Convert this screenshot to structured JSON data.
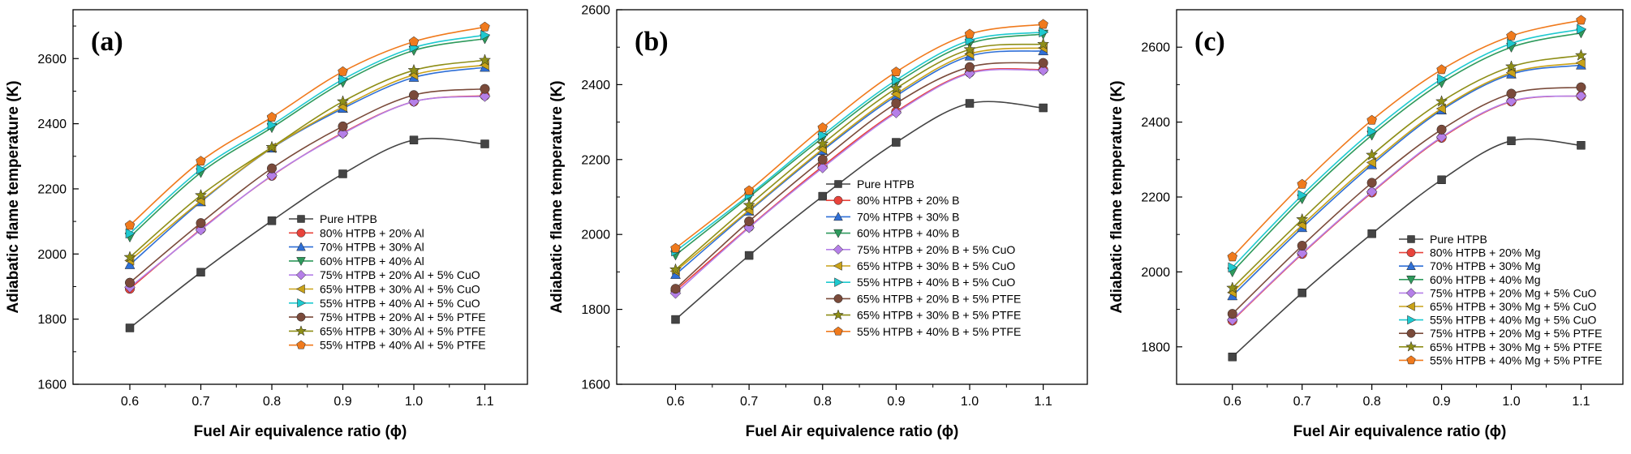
{
  "colors": {
    "Pure HTPB": "#444444",
    "80% HTPB": "#e8433b",
    "70% HTPB": "#2f6fd6",
    "60% HTPB": "#2e9a5c",
    "75% HTPB + 20% + 5% CuO": "#b57fe8",
    "65% HTPB + 30% + 5% CuO": "#c9a218",
    "55% HTPB + 40% + 5% CuO": "#1ec9cf",
    "75% HTPB + 20% + 5% PTFE": "#7a4a3a",
    "65% HTPB + 30% + 5% PTFE": "#8e8e17",
    "55% HTPB + 40% + 5% PTFE": "#f07a1d"
  },
  "chart_data": [
    {
      "type": "line",
      "panel_label": "(a)",
      "xlabel": "Fuel Air equivalence ratio (ɸ)",
      "ylabel": "Adiabatic flame temperature (K)",
      "x": [
        0.6,
        0.7,
        0.8,
        0.9,
        1.0,
        1.1
      ],
      "x_ticks": [
        "0.6",
        "0.7",
        "0.8",
        "0.9",
        "1.0",
        "1.1"
      ],
      "ylim": [
        1600,
        2750
      ],
      "y_ticks": [
        "1600",
        "1800",
        "2000",
        "2200",
        "2400",
        "2600"
      ],
      "legend_position": "bottom-right",
      "series": [
        {
          "name": "Pure HTPB",
          "marker": "square",
          "values": [
            1773,
            1944,
            2102,
            2246,
            2350,
            2338
          ]
        },
        {
          "name": "80% HTPB + 20% Al",
          "marker": "circle",
          "values": [
            1893,
            2076,
            2240,
            2372,
            2468,
            2486
          ]
        },
        {
          "name": "70% HTPB + 30% Al",
          "marker": "triangle-up",
          "values": [
            1967,
            2160,
            2325,
            2447,
            2542,
            2573
          ]
        },
        {
          "name": "60% HTPB + 40% Al",
          "marker": "triangle-down",
          "values": [
            2052,
            2250,
            2388,
            2527,
            2625,
            2661
          ]
        },
        {
          "name": "75% HTPB + 20% Al + 5% CuO",
          "marker": "diamond",
          "values": [
            1898,
            2074,
            2241,
            2370,
            2468,
            2484
          ]
        },
        {
          "name": "65% HTPB + 30% Al + 5% CuO",
          "marker": "triangle-left",
          "values": [
            1980,
            2163,
            2326,
            2452,
            2550,
            2580
          ]
        },
        {
          "name": "55% HTPB + 40% Al + 5% CuO",
          "marker": "triangle-right",
          "values": [
            2063,
            2260,
            2396,
            2536,
            2634,
            2672
          ]
        },
        {
          "name": "75% HTPB + 20% Al + 5% PTFE",
          "marker": "circle",
          "values": [
            1912,
            2095,
            2263,
            2392,
            2488,
            2507
          ]
        },
        {
          "name": "65% HTPB + 30% Al + 5% PTFE",
          "marker": "star",
          "values": [
            1990,
            2180,
            2328,
            2468,
            2564,
            2595
          ]
        },
        {
          "name": "55% HTPB + 40% Al + 5% PTFE",
          "marker": "pentagon",
          "values": [
            2088,
            2285,
            2420,
            2560,
            2652,
            2697
          ]
        }
      ]
    },
    {
      "type": "line",
      "panel_label": "(b)",
      "xlabel": "Fuel Air equivalence ratio (ɸ)",
      "ylabel": "Adiabatic flame temperature (K)",
      "x": [
        0.6,
        0.7,
        0.8,
        0.9,
        1.0,
        1.1
      ],
      "x_ticks": [
        "0.6",
        "0.7",
        "0.8",
        "0.9",
        "1.0",
        "1.1"
      ],
      "ylim": [
        1600,
        2600
      ],
      "y_ticks": [
        "1600",
        "1800",
        "2000",
        "2200",
        "2400",
        "2600"
      ],
      "legend_position": "bottom-right",
      "series": [
        {
          "name": "Pure HTPB",
          "marker": "square",
          "values": [
            1773,
            1944,
            2102,
            2246,
            2350,
            2338
          ]
        },
        {
          "name": "80% HTPB + 20% B",
          "marker": "circle",
          "values": [
            1850,
            2020,
            2182,
            2328,
            2432,
            2440
          ]
        },
        {
          "name": "70% HTPB + 30% B",
          "marker": "triangle-up",
          "values": [
            1893,
            2062,
            2224,
            2370,
            2476,
            2490
          ]
        },
        {
          "name": "60% HTPB + 40% B",
          "marker": "triangle-down",
          "values": [
            1945,
            2100,
            2258,
            2404,
            2510,
            2535
          ]
        },
        {
          "name": "75% HTPB + 20% B + 5% CuO",
          "marker": "diamond",
          "values": [
            1843,
            2018,
            2178,
            2325,
            2430,
            2438
          ]
        },
        {
          "name": "65% HTPB + 30% B + 5% CuO",
          "marker": "triangle-left",
          "values": [
            1902,
            2065,
            2228,
            2375,
            2482,
            2498
          ]
        },
        {
          "name": "55% HTPB + 40% B + 5% CuO",
          "marker": "triangle-right",
          "values": [
            1955,
            2105,
            2265,
            2412,
            2518,
            2540
          ]
        },
        {
          "name": "65% HTPB + 20% B + 5% PTFE",
          "marker": "circle",
          "values": [
            1855,
            2035,
            2200,
            2350,
            2447,
            2458
          ]
        },
        {
          "name": "65% HTPB + 30% B + 5% PTFE",
          "marker": "star",
          "values": [
            1906,
            2078,
            2242,
            2390,
            2494,
            2508
          ]
        },
        {
          "name": "55% HTPB + 40% B + 5% PTFE",
          "marker": "pentagon",
          "values": [
            1963,
            2117,
            2285,
            2434,
            2535,
            2561
          ]
        }
      ]
    },
    {
      "type": "line",
      "panel_label": "(c)",
      "xlabel": "Fuel Air equivalence ratio (ɸ)",
      "ylabel": "Adiabatic flame temperature (K)",
      "x": [
        0.6,
        0.7,
        0.8,
        0.9,
        1.0,
        1.1
      ],
      "x_ticks": [
        "0.6",
        "0.7",
        "0.8",
        "0.9",
        "1.0",
        "1.1"
      ],
      "ylim": [
        1700,
        2700
      ],
      "y_ticks": [
        "1800",
        "2000",
        "2200",
        "2400",
        "2600"
      ],
      "legend_position": "bottom-right",
      "series": [
        {
          "name": "Pure HTPB",
          "marker": "square",
          "values": [
            1773,
            1944,
            2102,
            2246,
            2350,
            2338
          ]
        },
        {
          "name": "80% HTPB + 20% Mg",
          "marker": "circle",
          "values": [
            1870,
            2048,
            2212,
            2358,
            2455,
            2470
          ]
        },
        {
          "name": "70% HTPB + 30% Mg",
          "marker": "triangle-up",
          "values": [
            1936,
            2118,
            2286,
            2432,
            2528,
            2552
          ]
        },
        {
          "name": "60% HTPB + 40% Mg",
          "marker": "triangle-down",
          "values": [
            2000,
            2195,
            2365,
            2505,
            2600,
            2638
          ]
        },
        {
          "name": "75% HTPB + 20% Mg + 5% CuO",
          "marker": "diamond",
          "values": [
            1872,
            2050,
            2214,
            2360,
            2456,
            2470
          ]
        },
        {
          "name": "65% HTPB + 30% Mg + 5% CuO",
          "marker": "triangle-left",
          "values": [
            1945,
            2125,
            2292,
            2436,
            2532,
            2558
          ]
        },
        {
          "name": "55% HTPB + 40% Mg + 5% CuO",
          "marker": "triangle-right",
          "values": [
            2012,
            2205,
            2375,
            2515,
            2610,
            2648
          ]
        },
        {
          "name": "75% HTPB + 20% Mg + 5% PTFE",
          "marker": "circle",
          "values": [
            1888,
            2070,
            2238,
            2380,
            2476,
            2493
          ]
        },
        {
          "name": "65% HTPB + 30% Mg + 5% PTFE",
          "marker": "star",
          "values": [
            1957,
            2140,
            2312,
            2455,
            2548,
            2578
          ]
        },
        {
          "name": "55% HTPB + 40% Mg + 5% PTFE",
          "marker": "pentagon",
          "values": [
            2040,
            2234,
            2405,
            2540,
            2630,
            2672
          ]
        }
      ]
    }
  ]
}
